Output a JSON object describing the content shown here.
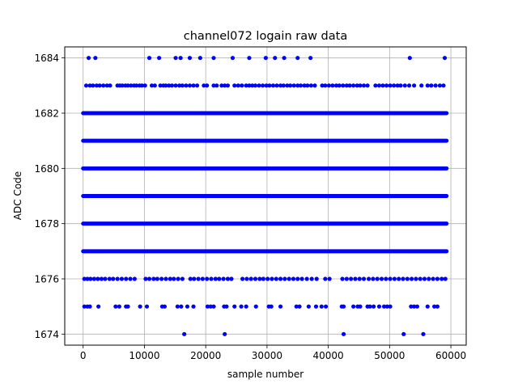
{
  "chart_data": {
    "type": "scatter",
    "title": "channel072 logain raw data",
    "xlabel": "sample number",
    "ylabel": "ADC Code",
    "xlim": [
      -3000,
      62500
    ],
    "ylim": [
      1673.6,
      1684.4
    ],
    "xticks": [
      0,
      10000,
      20000,
      30000,
      40000,
      50000,
      60000
    ],
    "yticks": [
      1674,
      1676,
      1678,
      1680,
      1682,
      1684
    ],
    "grid": true,
    "marker_color": "#0000ff",
    "n_samples": 59300,
    "dense_levels": [
      1677,
      1678,
      1679,
      1680,
      1681,
      1682
    ],
    "level_1683_x": [
      500,
      1100,
      1600,
      2200,
      2700,
      3300,
      3900,
      4400,
      5600,
      6000,
      6400,
      6900,
      7300,
      7800,
      8300,
      8700,
      9200,
      9600,
      10100,
      11200,
      11700,
      12600,
      13100,
      13500,
      14000,
      14500,
      15100,
      15700,
      16200,
      16800,
      17400,
      18000,
      18600,
      19700,
      20200,
      21300,
      21800,
      22600,
      23100,
      23600,
      24700,
      25300,
      25900,
      26600,
      27100,
      27600,
      28100,
      28700,
      29300,
      29900,
      30400,
      31000,
      31600,
      32200,
      32700,
      33300,
      33800,
      34400,
      35000,
      35500,
      36100,
      36600,
      37200,
      37800,
      39000,
      39500,
      40100,
      40700,
      41300,
      41800,
      42400,
      43000,
      43500,
      44100,
      44700,
      45200,
      45800,
      46400,
      47700,
      48300,
      48900,
      49500,
      50100,
      50700,
      51300,
      51800,
      52500,
      53200,
      54000,
      55200,
      56200,
      56800,
      57500,
      58200,
      58800
    ],
    "level_1676_x": [
      200,
      700,
      1200,
      1800,
      2400,
      3000,
      3600,
      4300,
      4900,
      5600,
      6300,
      7000,
      7700,
      8400,
      10200,
      10800,
      11500,
      12100,
      12800,
      13500,
      14200,
      14800,
      15500,
      16200,
      17500,
      18100,
      18800,
      19500,
      20200,
      20900,
      21600,
      22200,
      22900,
      23600,
      24200,
      26000,
      26700,
      27400,
      28100,
      28800,
      29400,
      30100,
      30800,
      31500,
      32200,
      32900,
      33600,
      34300,
      35000,
      35700,
      36500,
      37300,
      38100,
      39500,
      40200,
      42300,
      43000,
      43700,
      44400,
      45100,
      45800,
      46600,
      47300,
      48000,
      48700,
      49400,
      50100,
      50800,
      51500,
      52200,
      52900,
      53600,
      54300,
      55000,
      55700,
      56400,
      57100,
      57800,
      58500,
      59100
    ],
    "level_1675_x": [
      200,
      700,
      1100,
      2500,
      5300,
      5900,
      7000,
      7300,
      9300,
      10400,
      12900,
      13300,
      15400,
      16000,
      17000,
      18000,
      20300,
      20800,
      21300,
      23000,
      23400,
      24700,
      25800,
      26600,
      28200,
      30300,
      30700,
      32200,
      34800,
      35300,
      36800,
      38000,
      38900,
      39600,
      42200,
      42500,
      44100,
      44800,
      45200,
      46400,
      46800,
      47400,
      48300,
      49100,
      49600,
      50100,
      53500,
      54000,
      54500,
      56200,
      57300,
      57800
    ],
    "level_1684_x": [
      900,
      2000,
      10800,
      12400,
      15100,
      15900,
      17400,
      19100,
      21300,
      24400,
      27100,
      29800,
      31300,
      32800,
      35000,
      37100,
      53300,
      59000
    ],
    "level_1674_x": [
      16500,
      23100,
      42500,
      52300,
      55500
    ]
  }
}
